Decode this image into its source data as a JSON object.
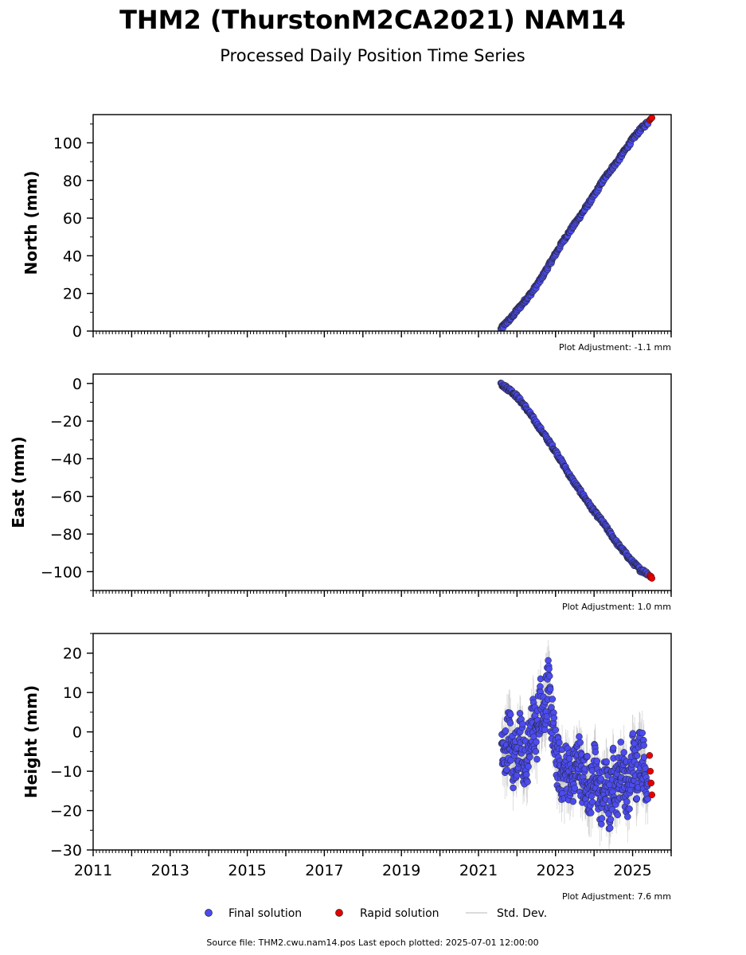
{
  "figure": {
    "title": "THM2 (ThurstonM2CA2021) NAM14",
    "subtitle": "Processed Daily Position Time Series",
    "source_text": "Source file: THM2.cwu.nam14.pos  Last epoch plotted: 2025-07-01 12:00:00"
  },
  "colors": {
    "final": "#4b4bf0",
    "rapid": "#e60000",
    "stddev": "#bdbdbd",
    "marker_edge": "#222222"
  },
  "chart_data": [
    {
      "type": "scatter",
      "panel": "north",
      "ylabel": "North (mm)",
      "adjustment": "Plot Adjustment: -1.1 mm",
      "xlim": [
        2011.0,
        2026.0
      ],
      "ylim": [
        0,
        115
      ],
      "yticks": [
        0,
        20,
        40,
        60,
        80,
        100
      ],
      "ytick_labels": [
        "0",
        "20",
        "40",
        "60",
        "80",
        "100"
      ],
      "x_minor_step": 0.0833,
      "y_minor_step": 10,
      "series": [
        {
          "name": "Final solution",
          "kind": "final",
          "x": [
            2021.58,
            2021.7,
            2021.85,
            2022.0,
            2022.2,
            2022.4,
            2022.6,
            2022.8,
            2023.0,
            2023.2,
            2023.4,
            2023.6,
            2023.8,
            2024.0,
            2024.2,
            2024.4,
            2024.6,
            2024.8,
            2025.0,
            2025.2,
            2025.4
          ],
          "y": [
            1,
            4,
            7,
            11,
            16,
            21,
            27,
            34,
            41,
            48,
            54,
            60,
            66,
            72,
            79,
            85,
            90,
            96,
            102,
            107,
            111
          ]
        },
        {
          "name": "Rapid solution",
          "kind": "rapid",
          "x": [
            2025.44,
            2025.46,
            2025.48,
            2025.5
          ],
          "y": [
            112,
            112.5,
            113,
            113.3
          ]
        }
      ]
    },
    {
      "type": "scatter",
      "panel": "east",
      "ylabel": "East (mm)",
      "adjustment": "Plot Adjustment: 1.0 mm",
      "xlim": [
        2011.0,
        2026.0
      ],
      "ylim": [
        -110,
        5
      ],
      "yticks": [
        -100,
        -80,
        -60,
        -40,
        -20,
        0
      ],
      "ytick_labels": [
        "−100",
        "−80",
        "−60",
        "−40",
        "−20",
        "0"
      ],
      "x_minor_step": 0.0833,
      "y_minor_step": 10,
      "series": [
        {
          "name": "Final solution",
          "kind": "final",
          "x": [
            2021.58,
            2021.7,
            2021.85,
            2022.0,
            2022.2,
            2022.4,
            2022.6,
            2022.8,
            2023.0,
            2023.2,
            2023.4,
            2023.6,
            2023.8,
            2024.0,
            2024.2,
            2024.4,
            2024.6,
            2024.8,
            2025.0,
            2025.2,
            2025.4
          ],
          "y": [
            0,
            -2,
            -4,
            -7,
            -12,
            -18,
            -24,
            -30,
            -36,
            -43,
            -50,
            -56,
            -62,
            -68,
            -73,
            -79,
            -85,
            -90,
            -95,
            -99,
            -101
          ]
        },
        {
          "name": "Rapid solution",
          "kind": "rapid",
          "x": [
            2025.44,
            2025.46,
            2025.48,
            2025.5
          ],
          "y": [
            -102,
            -103,
            -102.5,
            -103.5
          ]
        }
      ]
    },
    {
      "type": "scatter",
      "panel": "height",
      "ylabel": "Height (mm)",
      "adjustment": "Plot Adjustment: 7.6 mm",
      "xlim": [
        2011.0,
        2026.0
      ],
      "ylim": [
        -30,
        25
      ],
      "yticks": [
        -30,
        -20,
        -10,
        0,
        10,
        20
      ],
      "ytick_labels": [
        "−30",
        "−20",
        "−10",
        "0",
        "10",
        "20"
      ],
      "xticks": [
        2011,
        2013,
        2015,
        2017,
        2019,
        2021,
        2023,
        2025
      ],
      "xtick_labels": [
        "2011",
        "2013",
        "2015",
        "2017",
        "2019",
        "2021",
        "2023",
        "2025"
      ],
      "x_minor_step": 0.0833,
      "y_minor_step": 5,
      "series": [
        {
          "name": "Final solution",
          "kind": "final",
          "x": [
            2021.6,
            2021.7,
            2021.8,
            2021.9,
            2022.0,
            2022.1,
            2022.2,
            2022.3,
            2022.4,
            2022.5,
            2022.6,
            2022.7,
            2022.8,
            2022.9,
            2023.0,
            2023.1,
            2023.2,
            2023.3,
            2023.4,
            2023.5,
            2023.6,
            2023.7,
            2023.8,
            2023.9,
            2024.0,
            2024.1,
            2024.2,
            2024.3,
            2024.4,
            2024.5,
            2024.6,
            2024.7,
            2024.8,
            2024.9,
            2025.0,
            2025.1,
            2025.2,
            2025.3,
            2025.4
          ],
          "y": [
            -3,
            -6,
            2,
            -8,
            -4,
            1,
            -10,
            -5,
            3,
            -2,
            8,
            5,
            12,
            4,
            -6,
            -9,
            -12,
            -8,
            -14,
            -10,
            -6,
            -13,
            -11,
            -16,
            -9,
            -14,
            -18,
            -12,
            -20,
            -10,
            -15,
            -8,
            -12,
            -17,
            -6,
            -11,
            -4,
            -9,
            -13
          ]
        },
        {
          "name": "Rapid solution",
          "kind": "rapid",
          "x": [
            2025.44,
            2025.46,
            2025.48,
            2025.5
          ],
          "y": [
            -6,
            -10,
            -13,
            -16
          ]
        }
      ],
      "stddev_extent_mm": 5
    }
  ],
  "legend": {
    "final_label": "Final solution",
    "rapid_label": "Rapid solution",
    "stddev_label": "Std. Dev."
  }
}
